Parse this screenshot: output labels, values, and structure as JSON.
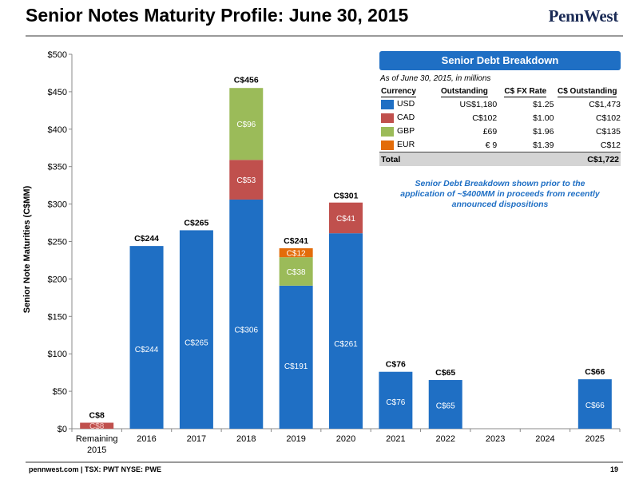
{
  "page": {
    "title": "Senior Notes Maturity Profile: June 30, 2015",
    "brand": "PennWest",
    "footer_left": "pennwest.com | TSX: PWT  NYSE: PWE",
    "page_number": "19"
  },
  "colors": {
    "USD": "#1f6fc4",
    "CAD": "#c0504d",
    "GBP": "#9bbb59",
    "EUR": "#e36c0a",
    "rule": "#9a9a9a",
    "accent": "#1f6fc4"
  },
  "chart_data": {
    "type": "bar",
    "stacked": true,
    "ylabel": "Senior Note Maturities (C$MM)",
    "ylim": [
      0,
      500
    ],
    "yticks": [
      0,
      50,
      100,
      150,
      200,
      250,
      300,
      350,
      400,
      450,
      500
    ],
    "ytick_labels": [
      "$0",
      "$50",
      "$100",
      "$150",
      "$200",
      "$250",
      "$300",
      "$350",
      "$400",
      "$450",
      "$500"
    ],
    "grid": false,
    "categories": [
      "Remaining 2015",
      "2016",
      "2017",
      "2018",
      "2019",
      "2020",
      "2021",
      "2022",
      "2023",
      "2024",
      "2025"
    ],
    "category_lines": [
      [
        "Remaining",
        "2015"
      ],
      [
        "2016"
      ],
      [
        "2017"
      ],
      [
        "2018"
      ],
      [
        "2019"
      ],
      [
        "2020"
      ],
      [
        "2021"
      ],
      [
        "2022"
      ],
      [
        "2023"
      ],
      [
        "2024"
      ],
      [
        "2025"
      ]
    ],
    "series": [
      {
        "name": "USD",
        "color_key": "USD",
        "values": [
          0,
          244,
          265,
          306,
          191,
          261,
          76,
          65,
          0,
          0,
          66
        ],
        "labels": [
          "",
          "C$244",
          "C$265",
          "C$306",
          "C$191",
          "C$261",
          "C$76",
          "C$65",
          "",
          "",
          "C$66"
        ]
      },
      {
        "name": "CAD",
        "color_key": "CAD",
        "values": [
          8,
          0,
          0,
          53,
          0,
          41,
          0,
          0,
          0,
          0,
          0
        ],
        "labels": [
          "C$8",
          "",
          "",
          "C$53",
          "",
          "C$41",
          "",
          "",
          "",
          "",
          ""
        ]
      },
      {
        "name": "GBP",
        "color_key": "GBP",
        "values": [
          0,
          0,
          0,
          96,
          38,
          0,
          0,
          0,
          0,
          0,
          0
        ],
        "labels": [
          "",
          "",
          "",
          "C$96",
          "C$38",
          "",
          "",
          "",
          "",
          "",
          ""
        ]
      },
      {
        "name": "EUR",
        "color_key": "EUR",
        "values": [
          0,
          0,
          0,
          0,
          12,
          0,
          0,
          0,
          0,
          0,
          0
        ],
        "labels": [
          "",
          "",
          "",
          "",
          "C$12",
          "",
          "",
          "",
          "",
          "",
          ""
        ]
      }
    ],
    "totals": [
      8,
      244,
      265,
      456,
      241,
      301,
      76,
      65,
      0,
      0,
      66
    ],
    "total_labels": [
      "C$8",
      "C$244",
      "C$265",
      "C$456",
      "C$241",
      "C$301",
      "C$76",
      "C$65",
      "",
      "",
      "C$66"
    ]
  },
  "breakdown": {
    "header": "Senior Debt Breakdown",
    "as_of": "As of June 30, 2015, in millions",
    "columns": [
      "Currency",
      "Outstanding",
      "C$ FX Rate",
      "C$ Outstanding"
    ],
    "rows": [
      {
        "currency": "USD",
        "color_key": "USD",
        "outstanding": "US$1,180",
        "fx_rate": "$1.25",
        "cad_outstanding": "C$1,473"
      },
      {
        "currency": "CAD",
        "color_key": "CAD",
        "outstanding": "C$102",
        "fx_rate": "$1.00",
        "cad_outstanding": "C$102"
      },
      {
        "currency": "GBP",
        "color_key": "GBP",
        "outstanding": "£69",
        "fx_rate": "$1.96",
        "cad_outstanding": "C$135"
      },
      {
        "currency": "EUR",
        "color_key": "EUR",
        "outstanding": "€ 9",
        "fx_rate": "$1.39",
        "cad_outstanding": "C$12"
      }
    ],
    "total_label": "Total",
    "total_value": "C$1,722",
    "note": "Senior Debt Breakdown shown prior to the application of ~$400MM in proceeds from recently announced dispositions"
  }
}
